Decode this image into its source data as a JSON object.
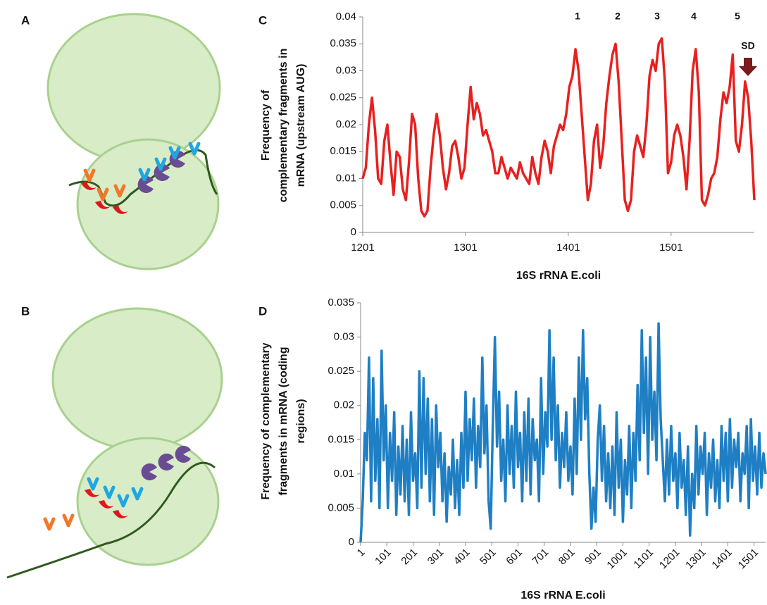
{
  "panels": [
    "A",
    "B"
  ],
  "chart_data": [
    {
      "type": "line",
      "panel": "C",
      "y_label": [
        "Frequency of",
        "complementary fragments in",
        "mRNA (upstream AUG)"
      ],
      "x_label": "16S rRNA E.coli",
      "annotations": [
        "1",
        "2",
        "3",
        "4",
        "5",
        "SD"
      ],
      "xlim": [
        1201,
        1582
      ],
      "xticks": [
        1201,
        1301,
        1401,
        1501
      ],
      "ylim": [
        0,
        0.04
      ],
      "yticks": [
        0,
        0.005,
        0.01,
        0.015,
        0.02,
        0.025,
        0.03,
        0.035,
        0.04
      ],
      "color": "#e8201f",
      "x": [
        1201,
        1204,
        1207,
        1210,
        1213,
        1216,
        1219,
        1222,
        1225,
        1228,
        1231,
        1234,
        1237,
        1240,
        1243,
        1246,
        1249,
        1252,
        1255,
        1258,
        1261,
        1264,
        1267,
        1270,
        1273,
        1276,
        1279,
        1282,
        1285,
        1288,
        1291,
        1294,
        1297,
        1300,
        1303,
        1306,
        1309,
        1312,
        1315,
        1318,
        1321,
        1324,
        1327,
        1330,
        1333,
        1336,
        1339,
        1342,
        1345,
        1348,
        1351,
        1354,
        1357,
        1360,
        1363,
        1366,
        1369,
        1372,
        1375,
        1378,
        1381,
        1384,
        1387,
        1390,
        1393,
        1396,
        1399,
        1402,
        1405,
        1408,
        1411,
        1414,
        1417,
        1420,
        1423,
        1426,
        1429,
        1432,
        1435,
        1438,
        1441,
        1444,
        1447,
        1450,
        1453,
        1456,
        1459,
        1462,
        1465,
        1468,
        1471,
        1474,
        1477,
        1480,
        1483,
        1486,
        1489,
        1492,
        1495,
        1498,
        1501,
        1504,
        1507,
        1510,
        1513,
        1516,
        1519,
        1522,
        1525,
        1528,
        1531,
        1534,
        1537,
        1540,
        1543,
        1546,
        1549,
        1552,
        1555,
        1558,
        1561,
        1564,
        1567,
        1570,
        1573,
        1576,
        1579,
        1582
      ],
      "values": [
        0.01,
        0.012,
        0.02,
        0.025,
        0.019,
        0.01,
        0.009,
        0.017,
        0.02,
        0.013,
        0.007,
        0.015,
        0.014,
        0.008,
        0.006,
        0.013,
        0.022,
        0.02,
        0.01,
        0.004,
        0.003,
        0.004,
        0.012,
        0.018,
        0.022,
        0.018,
        0.012,
        0.008,
        0.011,
        0.016,
        0.017,
        0.014,
        0.01,
        0.012,
        0.02,
        0.027,
        0.021,
        0.024,
        0.022,
        0.018,
        0.019,
        0.017,
        0.015,
        0.011,
        0.011,
        0.014,
        0.012,
        0.01,
        0.012,
        0.011,
        0.01,
        0.013,
        0.011,
        0.01,
        0.009,
        0.014,
        0.011,
        0.009,
        0.014,
        0.017,
        0.015,
        0.011,
        0.016,
        0.018,
        0.02,
        0.019,
        0.022,
        0.027,
        0.029,
        0.034,
        0.03,
        0.022,
        0.014,
        0.006,
        0.009,
        0.017,
        0.02,
        0.012,
        0.016,
        0.024,
        0.029,
        0.033,
        0.035,
        0.028,
        0.017,
        0.006,
        0.004,
        0.006,
        0.015,
        0.018,
        0.016,
        0.014,
        0.02,
        0.029,
        0.032,
        0.03,
        0.035,
        0.036,
        0.028,
        0.011,
        0.013,
        0.018,
        0.02,
        0.018,
        0.014,
        0.008,
        0.017,
        0.03,
        0.034,
        0.026,
        0.006,
        0.005,
        0.007,
        0.01,
        0.011,
        0.014,
        0.021,
        0.026,
        0.024,
        0.027,
        0.033,
        0.017,
        0.015,
        0.02,
        0.028,
        0.025,
        0.017,
        0.006
      ]
    },
    {
      "type": "line",
      "panel": "D",
      "y_label": [
        "Frequency of complementary",
        "fragments in mRNA (coding",
        "regions)"
      ],
      "x_label": "16S rRNA E.coli",
      "xlim": [
        1,
        1545
      ],
      "xticks": [
        1,
        101,
        201,
        301,
        401,
        501,
        601,
        701,
        801,
        901,
        1001,
        1101,
        1201,
        1301,
        1401,
        1501
      ],
      "ylim": [
        0,
        0.035
      ],
      "yticks": [
        0,
        0.005,
        0.01,
        0.015,
        0.02,
        0.025,
        0.03,
        0.035
      ],
      "color": "#1f7fc4",
      "x": [
        1,
        9,
        17,
        25,
        33,
        41,
        49,
        57,
        65,
        73,
        81,
        89,
        97,
        105,
        113,
        121,
        129,
        137,
        145,
        153,
        161,
        169,
        177,
        185,
        193,
        201,
        209,
        217,
        225,
        233,
        241,
        249,
        257,
        265,
        273,
        281,
        289,
        297,
        305,
        313,
        321,
        329,
        337,
        345,
        353,
        361,
        369,
        377,
        385,
        393,
        401,
        409,
        417,
        425,
        433,
        441,
        449,
        457,
        465,
        473,
        481,
        489,
        497,
        505,
        513,
        521,
        529,
        537,
        545,
        553,
        561,
        569,
        577,
        585,
        593,
        601,
        609,
        617,
        625,
        633,
        641,
        649,
        657,
        665,
        673,
        681,
        689,
        697,
        705,
        713,
        721,
        729,
        737,
        745,
        753,
        761,
        769,
        777,
        785,
        793,
        801,
        809,
        817,
        825,
        833,
        841,
        849,
        857,
        865,
        873,
        881,
        889,
        897,
        905,
        913,
        921,
        929,
        937,
        945,
        953,
        961,
        969,
        977,
        985,
        993,
        1001,
        1009,
        1017,
        1025,
        1033,
        1041,
        1049,
        1057,
        1065,
        1073,
        1081,
        1089,
        1097,
        1105,
        1113,
        1121,
        1129,
        1137,
        1145,
        1153,
        1161,
        1169,
        1177,
        1185,
        1193,
        1201,
        1209,
        1217,
        1225,
        1233,
        1241,
        1249,
        1257,
        1265,
        1273,
        1281,
        1289,
        1297,
        1305,
        1313,
        1321,
        1329,
        1337,
        1345,
        1353,
        1361,
        1369,
        1377,
        1385,
        1393,
        1401,
        1409,
        1417,
        1425,
        1433,
        1441,
        1449,
        1457,
        1465,
        1473,
        1481,
        1489,
        1497,
        1505,
        1513,
        1521,
        1529,
        1537,
        1545
      ],
      "values": [
        0.0,
        0.006,
        0.016,
        0.012,
        0.027,
        0.006,
        0.024,
        0.009,
        0.018,
        0.005,
        0.028,
        0.012,
        0.02,
        0.005,
        0.016,
        0.009,
        0.019,
        0.004,
        0.014,
        0.007,
        0.017,
        0.006,
        0.015,
        0.004,
        0.019,
        0.009,
        0.013,
        0.005,
        0.025,
        0.008,
        0.024,
        0.01,
        0.021,
        0.006,
        0.018,
        0.004,
        0.02,
        0.011,
        0.016,
        0.006,
        0.013,
        0.003,
        0.011,
        0.007,
        0.015,
        0.005,
        0.012,
        0.004,
        0.016,
        0.008,
        0.022,
        0.009,
        0.018,
        0.012,
        0.021,
        0.008,
        0.017,
        0.011,
        0.027,
        0.013,
        0.02,
        0.006,
        0.002,
        0.017,
        0.03,
        0.014,
        0.022,
        0.009,
        0.015,
        0.006,
        0.02,
        0.01,
        0.017,
        0.008,
        0.022,
        0.011,
        0.016,
        0.006,
        0.019,
        0.009,
        0.021,
        0.007,
        0.018,
        0.012,
        0.015,
        0.006,
        0.024,
        0.01,
        0.019,
        0.014,
        0.031,
        0.015,
        0.027,
        0.012,
        0.02,
        0.008,
        0.016,
        0.011,
        0.019,
        0.009,
        0.014,
        0.007,
        0.021,
        0.01,
        0.027,
        0.015,
        0.031,
        0.018,
        0.024,
        0.01,
        0.002,
        0.008,
        0.003,
        0.015,
        0.02,
        0.009,
        0.017,
        0.006,
        0.013,
        0.005,
        0.014,
        0.004,
        0.019,
        0.008,
        0.015,
        0.003,
        0.012,
        0.007,
        0.017,
        0.005,
        0.016,
        0.009,
        0.023,
        0.012,
        0.031,
        0.016,
        0.027,
        0.01,
        0.03,
        0.015,
        0.022,
        0.012,
        0.032,
        0.018,
        0.012,
        0.006,
        0.015,
        0.007,
        0.017,
        0.009,
        0.013,
        0.005,
        0.016,
        0.008,
        0.012,
        0.004,
        0.014,
        0.001,
        0.01,
        0.005,
        0.017,
        0.007,
        0.014,
        0.01,
        0.016,
        0.004,
        0.013,
        0.008,
        0.015,
        0.006,
        0.012,
        0.005,
        0.017,
        0.009,
        0.016,
        0.006,
        0.018,
        0.008,
        0.015,
        0.011,
        0.016,
        0.006,
        0.013,
        0.01,
        0.017,
        0.005,
        0.018,
        0.009,
        0.014,
        0.007,
        0.016,
        0.008,
        0.013,
        0.01
      ]
    }
  ]
}
